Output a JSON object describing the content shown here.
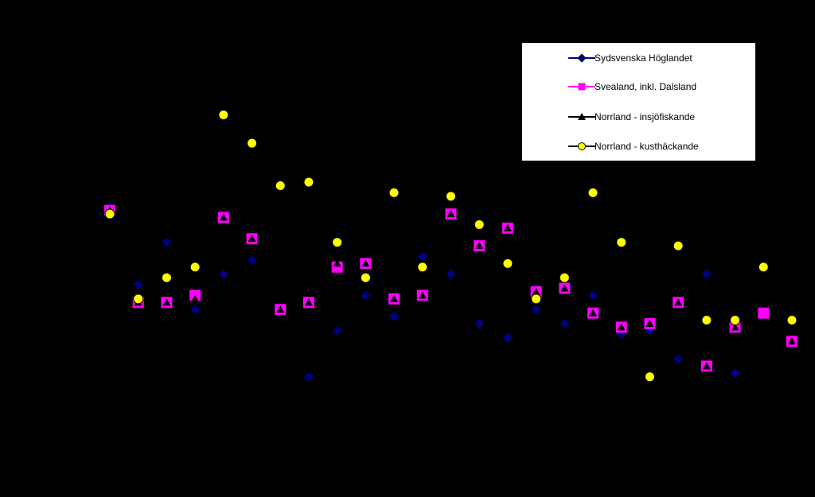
{
  "chart_data": {
    "type": "scatter",
    "title": "",
    "xlabel": "",
    "ylabel": "",
    "background": "#000000",
    "legend_position": "top-right",
    "grid": false,
    "x": [
      1,
      2,
      3,
      4,
      5,
      6,
      7,
      8,
      9,
      10,
      11,
      12,
      13,
      14,
      15,
      16,
      17,
      18,
      19,
      20,
      21,
      22,
      23,
      24,
      25
    ],
    "xlim": [
      0.5,
      25.5
    ],
    "ylim": [
      0,
      100
    ],
    "series": [
      {
        "name": "Sydsvenska Höglandet",
        "marker": "diamond",
        "color": "#000080",
        "values": [
          64,
          42,
          54,
          35,
          45,
          49,
          35,
          16,
          29,
          39,
          33,
          50,
          45,
          31,
          27,
          35,
          31,
          39,
          28,
          29,
          21,
          45,
          17,
          46,
          32
        ]
      },
      {
        "name": "Svealand, inkl. Dalsland",
        "marker": "square",
        "color": "#ff00ff",
        "values": [
          63,
          37,
          37,
          39,
          61,
          55,
          35,
          37,
          47,
          48,
          38,
          39,
          62,
          53,
          58,
          40,
          41,
          34,
          30,
          31,
          37,
          19,
          30,
          34,
          26
        ]
      },
      {
        "name": "Norrland - insjöfiskande",
        "marker": "triangle",
        "color": "#000000",
        "values": [
          63,
          37,
          37,
          38,
          61,
          55,
          35,
          37,
          48,
          48,
          38,
          39,
          62,
          53,
          58,
          40,
          41,
          34,
          30,
          31,
          37,
          19,
          30,
          46,
          26
        ]
      },
      {
        "name": "Norrland - kusthäckande",
        "marker": "circle",
        "color": "#ffff00",
        "values": [
          62,
          38,
          44,
          47,
          90,
          82,
          70,
          71,
          54,
          44,
          68,
          47,
          67,
          59,
          48,
          38,
          44,
          68,
          54,
          16,
          53,
          32,
          32,
          47,
          32
        ]
      }
    ]
  }
}
